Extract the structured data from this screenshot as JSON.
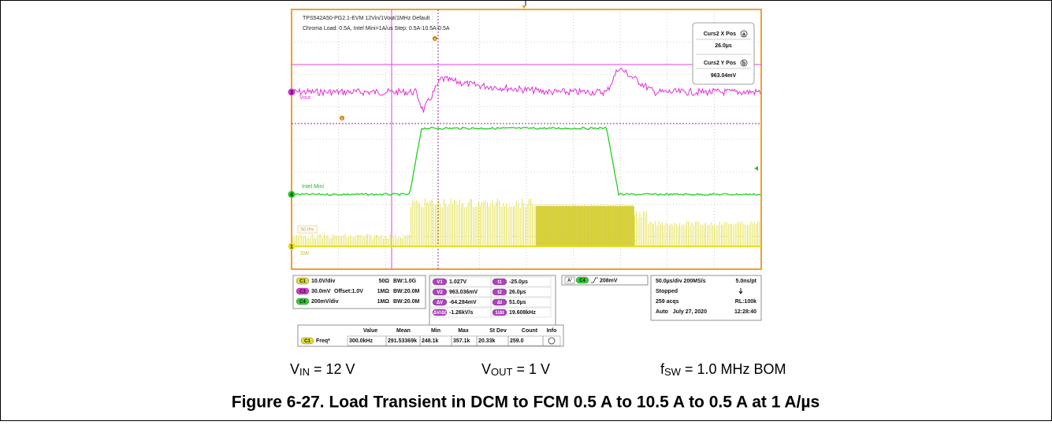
{
  "header": {
    "line1": "TPS542A50-PG2.1-EVM 12Vin/1Vout/1MHz Default",
    "line2": "Chroma Load: 0.5A, Intel Mini=1A/us Step: 0.5A-10.5A-0.5A"
  },
  "cursor_box": {
    "x_label": "Curs2 X Pos",
    "x_marker": "a",
    "x_value": "26.0µs",
    "y_label": "Curs2 Y Pos",
    "y_marker": "b",
    "y_value": "963.04mV"
  },
  "traces": {
    "ch3_label": "Vout",
    "ch4_label": "Intel Mini",
    "ch1_label": "SW",
    "level": "50.0%",
    "markers": [
      "3",
      "4",
      "1"
    ],
    "cursor_a": "a",
    "cursor_b": "b"
  },
  "channels": [
    {
      "chip": "C1",
      "scale": "10.0V/div",
      "impedance": "50Ω",
      "bw": "BW:1.0G"
    },
    {
      "chip": "C3",
      "scale": "30.0mV",
      "offset": "Offset:1.0V",
      "impedance": "1MΩ",
      "bw": "BW:20.0M"
    },
    {
      "chip": "C4",
      "scale": "200mV/div",
      "impedance": "1MΩ",
      "bw": "BW:20.0M"
    }
  ],
  "cursors": [
    {
      "chip": "V1",
      "value": "1.027V"
    },
    {
      "chip": "V2",
      "value": "963.036mV"
    },
    {
      "chip": "ΔV",
      "value": "-64.284mV"
    },
    {
      "chip": "ΔV/Δt",
      "value": "-1.26kV/s"
    },
    {
      "chip": "t1",
      "value": "-25.0µs"
    },
    {
      "chip": "t2",
      "value": "26.0µs"
    },
    {
      "chip": "Δt",
      "value": "51.0µs"
    },
    {
      "chip": "1/Δt",
      "value": "19.608kHz"
    }
  ],
  "trigger": {
    "source": "A'",
    "chip": "C4",
    "level": "208mV"
  },
  "timebase": {
    "rate": "50.0µs/div 200MS/s",
    "pt": "5.0ns/pt",
    "state": "Stopped",
    "acqs": "259 acqs",
    "rl": "RL:100k",
    "mode": "Auto   July 27, 2020",
    "time": "12:28:40"
  },
  "measurement": {
    "headers": [
      "Value",
      "Mean",
      "Min",
      "Max",
      "St Dev",
      "Count",
      "Info"
    ],
    "row": [
      "C1",
      "Freq*",
      "300.0kHz",
      "291.53369k",
      "248.1k",
      "357.1k",
      "20.33k",
      "259.0"
    ]
  },
  "caption": {
    "conditions": [
      {
        "main": "V",
        "sub": "IN",
        "rest": " = 12 V"
      },
      {
        "main": "V",
        "sub": "OUT",
        "rest": " = 1 V"
      },
      {
        "main": "f",
        "sub": "SW",
        "rest": " = 1.0 MHz BOM"
      }
    ],
    "title": "Figure 6-27. Load Transient in DCM to FCM 0.5 A to 10.5 A to 0.5 A at 1 A/µs"
  }
}
